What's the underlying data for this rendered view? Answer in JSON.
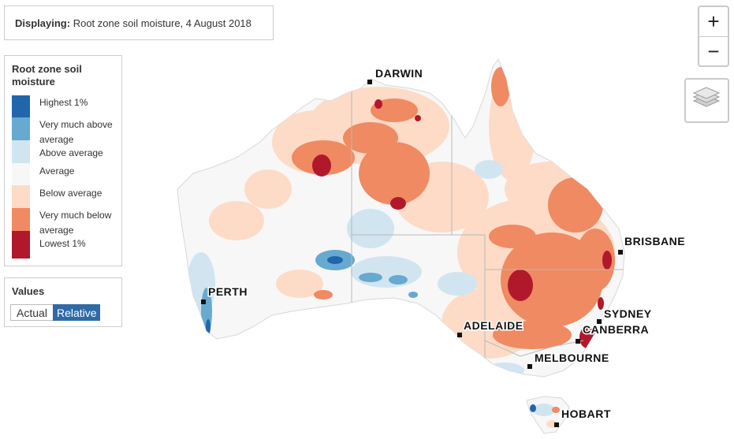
{
  "display": {
    "label": "Displaying:",
    "value": "Root zone soil moisture, 4 August 2018"
  },
  "legend": {
    "title": "Root zone soil moisture",
    "items": [
      {
        "label": "Highest 1%",
        "color": "#2166ac"
      },
      {
        "label": "Very much above average",
        "color": "#67a9cf"
      },
      {
        "label": "Above average",
        "color": "#d1e5f0"
      },
      {
        "label": "Average",
        "color": "#f7f7f7"
      },
      {
        "label": "Below average",
        "color": "#fddbc7"
      },
      {
        "label": "Very much below average",
        "color": "#ef8a62"
      },
      {
        "label": "Lowest 1%",
        "color": "#b2182b"
      }
    ]
  },
  "values": {
    "title": "Values",
    "actual_label": "Actual",
    "relative_label": "Relative",
    "selected": "Relative"
  },
  "zoom": {
    "in_label": "+",
    "out_label": "−"
  },
  "layers_icon": "layers-icon",
  "cities": {
    "darwin": "DARWIN",
    "brisbane": "BRISBANE",
    "perth": "PERTH",
    "sydney": "SYDNEY",
    "canberra": "CANBERRA",
    "adelaide": "ADELAIDE",
    "melbourne": "MELBOURNE",
    "hobart": "HOBART"
  }
}
